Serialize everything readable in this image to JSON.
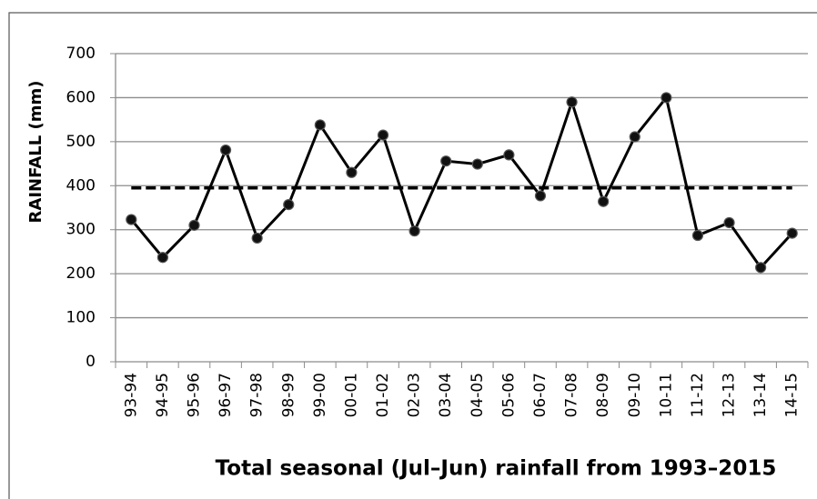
{
  "chart_data": {
    "type": "line",
    "title": "Total seasonal (Jul–Jun) rainfall from 1993–2015",
    "y_label": "RAINFALL (mm)",
    "categories": [
      "93-94",
      "94-95",
      "95-96",
      "96-97",
      "97-98",
      "98-99",
      "99-00",
      "00-01",
      "01-02",
      "02-03",
      "03-04",
      "04-05",
      "05-06",
      "06-07",
      "07-08",
      "08-09",
      "09-10",
      "10-11",
      "11-12",
      "12-13",
      "13-14",
      "14-15"
    ],
    "values": [
      323,
      237,
      310,
      481,
      281,
      357,
      538,
      430,
      515,
      297,
      456,
      449,
      470,
      377,
      590,
      364,
      511,
      600,
      287,
      316,
      214,
      292
    ],
    "color": "#000000",
    "mean_line": 395,
    "ylim": [
      0,
      700
    ],
    "yticks": [
      0,
      100,
      200,
      300,
      400,
      500,
      600,
      700
    ],
    "grid": true
  }
}
